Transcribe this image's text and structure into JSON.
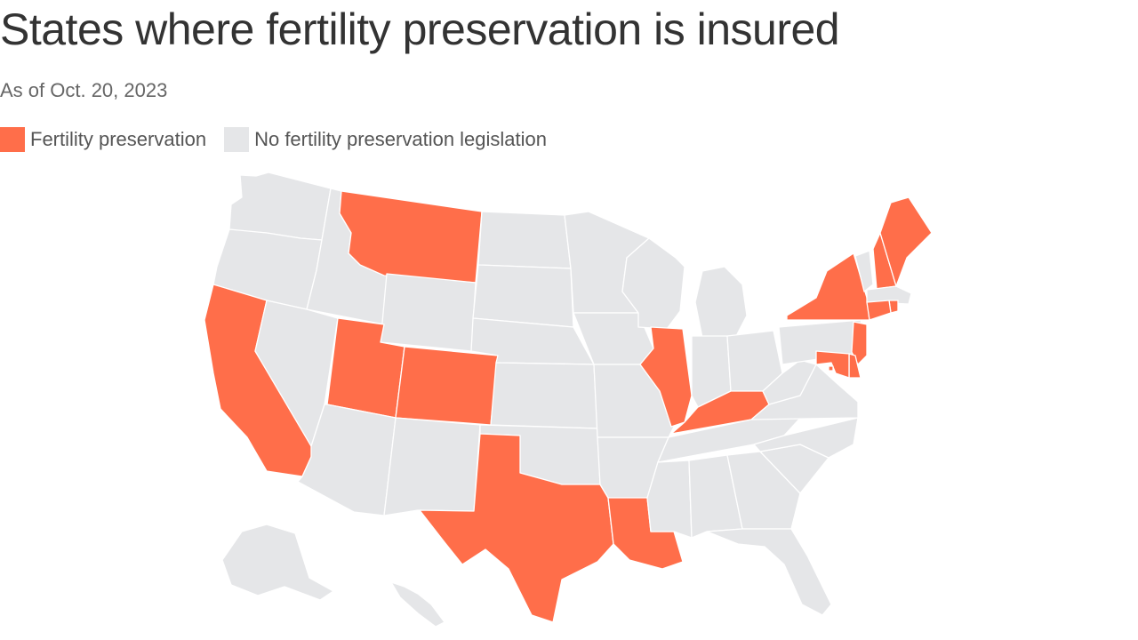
{
  "title": "States where fertility preservation is insured",
  "subtitle": "As of Oct. 20, 2023",
  "colors": {
    "insured": "#ff6e4a",
    "not_insured": "#e5e6e8",
    "border": "#ffffff",
    "title_text": "#333333"
  },
  "legend": [
    {
      "key": "insured",
      "label": "Fertility preservation"
    },
    {
      "key": "not_insured",
      "label": "No fertility preservation legislation"
    }
  ],
  "states": [
    {
      "name": "Washington",
      "status": "not_insured"
    },
    {
      "name": "Oregon",
      "status": "not_insured"
    },
    {
      "name": "California",
      "status": "insured"
    },
    {
      "name": "Idaho",
      "status": "not_insured"
    },
    {
      "name": "Nevada",
      "status": "not_insured"
    },
    {
      "name": "Montana",
      "status": "insured"
    },
    {
      "name": "Wyoming",
      "status": "not_insured"
    },
    {
      "name": "Utah",
      "status": "insured"
    },
    {
      "name": "Arizona",
      "status": "not_insured"
    },
    {
      "name": "Colorado",
      "status": "insured"
    },
    {
      "name": "New Mexico",
      "status": "not_insured"
    },
    {
      "name": "North Dakota",
      "status": "not_insured"
    },
    {
      "name": "South Dakota",
      "status": "not_insured"
    },
    {
      "name": "Nebraska",
      "status": "not_insured"
    },
    {
      "name": "Kansas",
      "status": "not_insured"
    },
    {
      "name": "Oklahoma",
      "status": "not_insured"
    },
    {
      "name": "Texas",
      "status": "insured"
    },
    {
      "name": "Minnesota",
      "status": "not_insured"
    },
    {
      "name": "Iowa",
      "status": "not_insured"
    },
    {
      "name": "Missouri",
      "status": "not_insured"
    },
    {
      "name": "Arkansas",
      "status": "not_insured"
    },
    {
      "name": "Louisiana",
      "status": "insured"
    },
    {
      "name": "Wisconsin",
      "status": "not_insured"
    },
    {
      "name": "Illinois",
      "status": "insured"
    },
    {
      "name": "Michigan",
      "status": "not_insured"
    },
    {
      "name": "Indiana",
      "status": "not_insured"
    },
    {
      "name": "Ohio",
      "status": "not_insured"
    },
    {
      "name": "Kentucky",
      "status": "insured"
    },
    {
      "name": "Tennessee",
      "status": "not_insured"
    },
    {
      "name": "Mississippi",
      "status": "not_insured"
    },
    {
      "name": "Alabama",
      "status": "not_insured"
    },
    {
      "name": "Georgia",
      "status": "not_insured"
    },
    {
      "name": "Florida",
      "status": "not_insured"
    },
    {
      "name": "South Carolina",
      "status": "not_insured"
    },
    {
      "name": "North Carolina",
      "status": "not_insured"
    },
    {
      "name": "Virginia",
      "status": "not_insured"
    },
    {
      "name": "West Virginia",
      "status": "not_insured"
    },
    {
      "name": "Pennsylvania",
      "status": "not_insured"
    },
    {
      "name": "New York",
      "status": "insured"
    },
    {
      "name": "Vermont",
      "status": "not_insured"
    },
    {
      "name": "New Hampshire",
      "status": "insured"
    },
    {
      "name": "Maine",
      "status": "insured"
    },
    {
      "name": "Massachusetts",
      "status": "not_insured"
    },
    {
      "name": "Rhode Island",
      "status": "insured"
    },
    {
      "name": "Connecticut",
      "status": "insured"
    },
    {
      "name": "New Jersey",
      "status": "insured"
    },
    {
      "name": "Delaware",
      "status": "insured"
    },
    {
      "name": "Maryland",
      "status": "insured"
    },
    {
      "name": "District of Columbia",
      "status": "insured"
    },
    {
      "name": "Alaska",
      "status": "not_insured"
    },
    {
      "name": "Hawaii",
      "status": "not_insured"
    }
  ]
}
